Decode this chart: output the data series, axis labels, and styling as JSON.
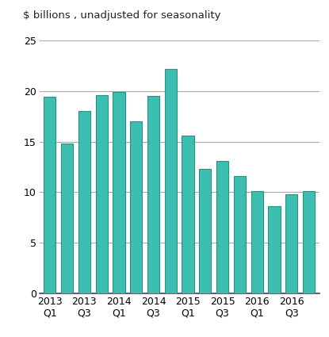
{
  "values": [
    19.4,
    14.8,
    18.0,
    19.6,
    19.9,
    17.0,
    19.5,
    22.2,
    15.6,
    12.3,
    13.1,
    11.6,
    10.1,
    8.6,
    9.8,
    10.1
  ],
  "n_bars": 16,
  "bar_color": "#3CBFB0",
  "bar_edge_color": "#2A9080",
  "background_color": "#ffffff",
  "sup_title": "$ billions , unadjusted for seasonality",
  "ylim": [
    0,
    25
  ],
  "yticks": [
    0,
    5,
    10,
    15,
    20,
    25
  ],
  "grid_color": "#aaaaaa",
  "grid_linewidth": 0.8,
  "sup_title_fontsize": 9.5,
  "tick_fontsize": 9,
  "bar_width": 0.7,
  "tick_labels": [
    "2013\nQ1",
    "2013\nQ3",
    "2014\nQ1",
    "2014\nQ3",
    "2015\nQ1",
    "2015\nQ3",
    "2016\nQ1",
    "2016\nQ3"
  ],
  "tick_positions": [
    0,
    2,
    4,
    6,
    8,
    10,
    12,
    14
  ]
}
